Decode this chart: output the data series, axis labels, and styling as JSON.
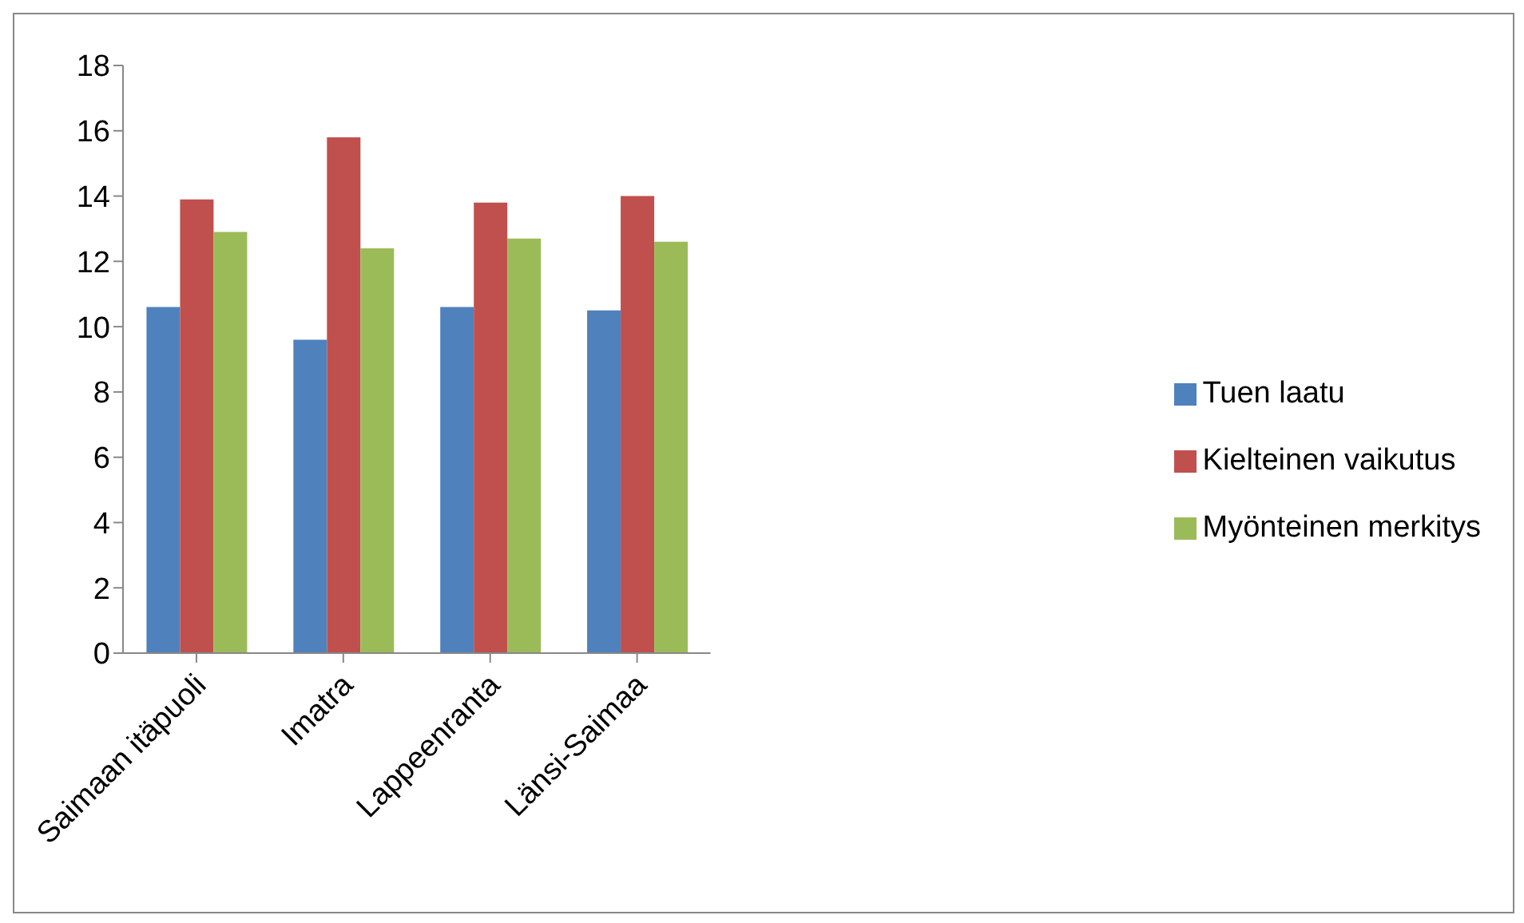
{
  "chart_data": {
    "type": "bar",
    "categories": [
      "Saimaan itäpuoli",
      "Imatra",
      "Lappeenranta",
      "Länsi-Saimaa"
    ],
    "series": [
      {
        "name": "Tuen laatu",
        "color": "#4f81bd",
        "values": [
          10.6,
          9.6,
          10.6,
          10.5
        ]
      },
      {
        "name": "Kielteinen vaikutus",
        "color": "#c0504d",
        "values": [
          13.9,
          15.8,
          13.8,
          14.0
        ]
      },
      {
        "name": "Myönteinen merkitys",
        "color": "#9bbb59",
        "values": [
          12.9,
          12.4,
          12.7,
          12.6
        ]
      }
    ],
    "ylim": [
      0,
      18
    ],
    "yticks": [
      0,
      2,
      4,
      6,
      8,
      10,
      12,
      14,
      16,
      18
    ],
    "grid": false,
    "legend": "right"
  }
}
